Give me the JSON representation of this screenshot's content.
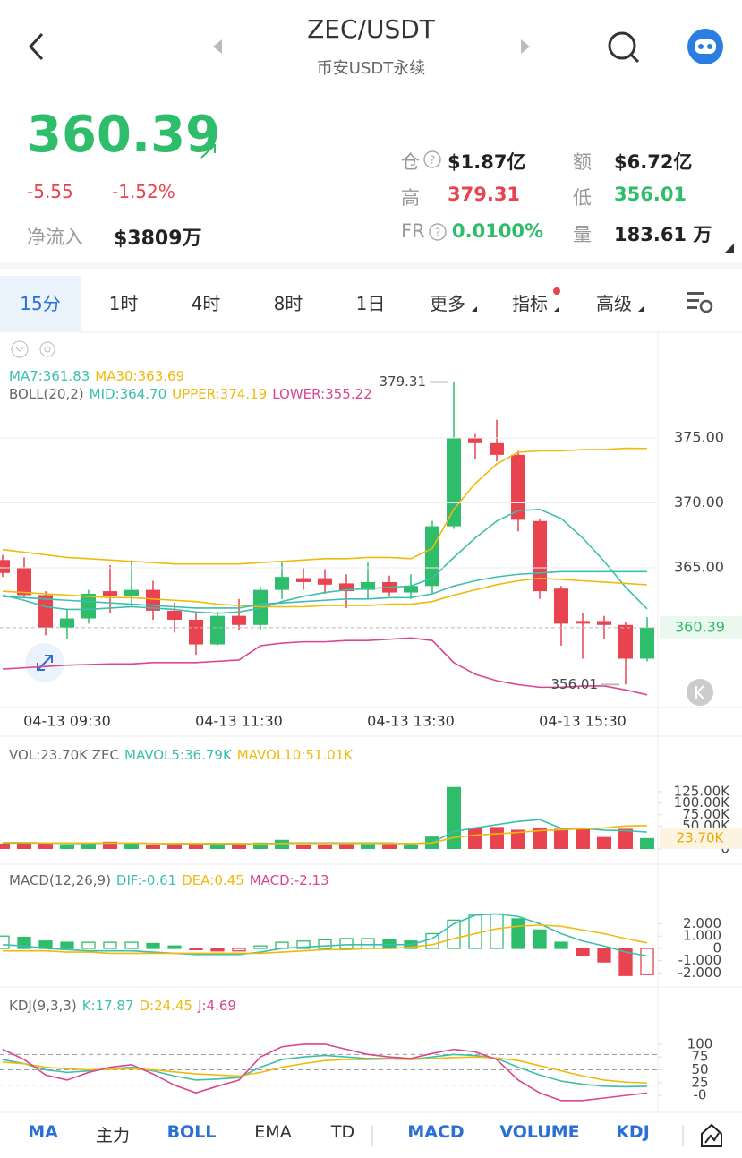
{
  "header": {
    "title": "ZEC/USDT",
    "subtitle": "币安USDT永续"
  },
  "quote": {
    "price": "360.39",
    "change": "-5.55",
    "change_pct": "-1.52%",
    "net_inflow_label": "净流入",
    "net_inflow": "$3809万",
    "stats": [
      {
        "label": "仓",
        "value": "$1.87亿",
        "color": "#222"
      },
      {
        "label": "额",
        "value": "$6.72亿",
        "color": "#222"
      },
      {
        "label": "高",
        "value": "379.31",
        "color": "#e8434f"
      },
      {
        "label": "低",
        "value": "356.01",
        "color": "#2ebd6b"
      },
      {
        "label": "FR",
        "value": "0.0100%",
        "color": "#2ebd6b"
      },
      {
        "label": "量",
        "value": "183.61 万",
        "color": "#222"
      }
    ]
  },
  "tabs": [
    {
      "label": "15分",
      "active": true
    },
    {
      "label": "1时"
    },
    {
      "label": "4时"
    },
    {
      "label": "8时"
    },
    {
      "label": "1日"
    },
    {
      "label": "更多"
    },
    {
      "label": "指标"
    },
    {
      "label": "高级"
    }
  ],
  "chart_data": [
    {
      "type": "candlestick",
      "up_color": "#2ebd6b",
      "down_color": "#e8434f",
      "categories": [
        null,
        null,
        null,
        "04-13 09:30",
        null,
        null,
        null,
        null,
        null,
        null,
        null,
        "04-13 11:30",
        null,
        null,
        null,
        null,
        null,
        null,
        null,
        "04-13 13:30",
        null,
        null,
        null,
        null,
        null,
        null,
        null,
        "04-13 15:30",
        null,
        null,
        null
      ],
      "open": [
        365.6,
        365.0,
        362.9,
        360.4,
        361.1,
        363.2,
        362.8,
        363.3,
        361.7,
        361.0,
        359.1,
        361.3,
        360.6,
        363.3,
        364.2,
        364.2,
        363.8,
        363.3,
        363.9,
        363.1,
        363.6,
        368.2,
        375.0,
        374.6,
        373.7,
        368.6,
        363.4,
        360.9,
        360.9,
        360.6,
        358.0
      ],
      "high": [
        366.0,
        365.8,
        363.2,
        361.8,
        363.3,
        365.2,
        365.6,
        364.0,
        362.3,
        361.5,
        361.6,
        362.6,
        363.5,
        365.5,
        365.0,
        364.9,
        364.5,
        365.4,
        364.4,
        364.5,
        368.6,
        379.31,
        375.3,
        376.4,
        374.0,
        368.8,
        363.6,
        361.5,
        361.3,
        360.8,
        361.2
      ],
      "low": [
        364.3,
        362.7,
        359.8,
        359.5,
        360.7,
        361.5,
        362.0,
        361.0,
        360.0,
        358.3,
        359.0,
        360.2,
        360.2,
        362.6,
        363.3,
        363.0,
        361.9,
        362.6,
        362.8,
        362.6,
        363.0,
        368.0,
        373.4,
        373.2,
        367.8,
        362.6,
        359.0,
        358.0,
        359.5,
        356.01,
        357.8
      ],
      "close": [
        364.6,
        362.9,
        360.4,
        361.1,
        363.0,
        362.8,
        363.3,
        361.7,
        361.0,
        359.1,
        361.3,
        360.6,
        363.3,
        364.3,
        363.9,
        363.7,
        363.2,
        363.9,
        363.1,
        363.6,
        368.2,
        375.0,
        374.6,
        373.7,
        368.7,
        363.2,
        360.7,
        360.7,
        360.6,
        358.0,
        360.39
      ],
      "series": [
        {
          "color": "#3cbfae",
          "values": [
            362.9,
            362.5,
            362.0,
            361.8,
            361.8,
            361.9,
            362.0,
            361.9,
            361.8,
            361.6,
            361.5,
            361.6,
            361.9,
            362.4,
            362.8,
            363.1,
            363.3,
            363.4,
            363.5,
            363.6,
            364.2,
            365.8,
            367.3,
            368.6,
            369.4,
            369.5,
            368.8,
            367.3,
            365.5,
            363.5,
            361.83
          ]
        },
        {
          "color": "#f0b90b",
          "values": [
            363.2,
            363.1,
            363.0,
            362.9,
            362.8,
            362.7,
            362.7,
            362.6,
            362.5,
            362.4,
            362.2,
            362.1,
            362.0,
            362.0,
            362.0,
            362.1,
            362.1,
            362.1,
            362.2,
            362.2,
            362.4,
            362.9,
            363.3,
            363.7,
            364.0,
            364.2,
            364.1,
            364.0,
            363.9,
            363.8,
            363.69
          ]
        },
        {
          "color": "#3cbfae",
          "values": [
            362.8,
            362.7,
            362.6,
            362.5,
            362.4,
            362.3,
            362.2,
            362.1,
            362.0,
            361.9,
            361.9,
            361.9,
            362.2,
            362.3,
            362.4,
            362.5,
            362.6,
            362.6,
            362.7,
            362.7,
            363.0,
            363.6,
            364.0,
            364.3,
            364.5,
            364.6,
            364.7,
            364.7,
            364.7,
            364.7,
            364.7
          ]
        },
        {
          "color": "#f0b90b",
          "values": [
            366.4,
            366.2,
            366.0,
            365.8,
            365.7,
            365.6,
            365.5,
            365.4,
            365.3,
            365.3,
            365.3,
            365.3,
            365.4,
            365.5,
            365.6,
            365.7,
            365.7,
            365.8,
            365.8,
            365.7,
            366.5,
            369.5,
            371.5,
            373.0,
            373.9,
            374.0,
            374.0,
            374.1,
            374.1,
            374.2,
            374.19
          ]
        },
        {
          "color": "#d9468f",
          "values": [
            357.2,
            357.3,
            357.4,
            357.5,
            357.55,
            357.6,
            357.6,
            357.7,
            357.7,
            357.7,
            357.8,
            357.9,
            359.0,
            359.2,
            359.3,
            359.3,
            359.4,
            359.4,
            359.5,
            359.6,
            359.4,
            357.7,
            356.8,
            356.3,
            356.0,
            355.8,
            355.8,
            355.9,
            355.9,
            355.6,
            355.22
          ]
        }
      ],
      "legend": [
        [
          {
            "text": "MA7:361.83",
            "color": "#3cbfae"
          },
          {
            "text": "MA30:363.69",
            "color": "#f0b90b"
          }
        ],
        [
          {
            "text": "BOLL(20,2)",
            "color": "#666"
          },
          {
            "text": "MID:364.70",
            "color": "#3cbfae"
          },
          {
            "text": "UPPER:374.19",
            "color": "#f0b90b"
          },
          {
            "text": "LOWER:355.22",
            "color": "#d9468f"
          }
        ]
      ],
      "high_label": "379.31",
      "low_label": "356.01",
      "last_label": "360.39",
      "ylim": [
        354.24,
        383.07
      ],
      "yticks": [
        {
          "value": 375,
          "label": "375.00"
        },
        {
          "value": 370,
          "label": "370.00"
        },
        {
          "value": 365,
          "label": "365.00"
        }
      ],
      "grid": true
    },
    {
      "type": "bar",
      "values": [
        12,
        14,
        13,
        10,
        12,
        16,
        12,
        10,
        8,
        12,
        10,
        10,
        14,
        20,
        10,
        10,
        12,
        12,
        11,
        8,
        27,
        135,
        45,
        48,
        42,
        45,
        44,
        46,
        26,
        44,
        23.7
      ],
      "series": [
        {
          "color": "#3cbfae",
          "values": [
            13,
            13,
            13,
            12,
            12,
            13,
            13,
            12,
            11,
            12,
            10,
            10,
            11,
            13,
            13,
            13,
            13,
            13,
            13,
            11,
            14,
            38,
            46,
            53,
            60,
            64,
            45,
            45,
            41,
            40,
            36.79
          ]
        },
        {
          "color": "#f0b90b",
          "values": [
            14,
            14,
            13,
            13,
            13,
            13,
            13,
            12,
            12,
            12,
            12,
            12,
            11,
            12,
            12,
            12,
            12,
            12,
            12,
            12,
            13,
            25,
            30,
            33,
            36,
            40,
            42,
            44,
            46,
            50,
            51.01
          ]
        }
      ],
      "legend": [
        [
          {
            "text": "VOL:23.70K ZEC",
            "color": "#666"
          },
          {
            "text": "MAVOL5:36.79K",
            "color": "#3cbfae"
          },
          {
            "text": "MAVOL10:51.01K",
            "color": "#f0b90b"
          }
        ]
      ],
      "last_label": "23.70K",
      "ylim": [
        0,
        230
      ],
      "yticks": [
        0,
        {
          "value": 50,
          "label": "50.00K"
        },
        {
          "value": 75,
          "label": "75.00K"
        },
        {
          "value": 100,
          "label": "100.00K"
        },
        {
          "value": 125,
          "label": "125.00K"
        }
      ]
    },
    {
      "type": "histogram",
      "values": [
        1.0,
        0.9,
        0.6,
        0.5,
        0.5,
        0.5,
        0.5,
        0.4,
        0.2,
        -0.1,
        -0.2,
        -0.2,
        0.2,
        0.5,
        0.6,
        0.7,
        0.8,
        0.8,
        0.7,
        0.6,
        1.2,
        2.3,
        2.7,
        2.8,
        2.4,
        1.5,
        0.5,
        -0.6,
        -1.1,
        -2.2,
        -2.13
      ],
      "series": [
        {
          "color": "#3cbfae",
          "values": [
            0.3,
            0.2,
            0.0,
            -0.1,
            -0.2,
            -0.2,
            -0.2,
            -0.3,
            -0.4,
            -0.5,
            -0.5,
            -0.5,
            -0.3,
            0.0,
            0.1,
            0.2,
            0.3,
            0.3,
            0.3,
            0.3,
            0.8,
            2.0,
            2.7,
            2.8,
            2.6,
            2.0,
            1.2,
            0.6,
            0.2,
            -0.3,
            -0.61
          ]
        },
        {
          "color": "#f0b90b",
          "values": [
            -0.2,
            -0.2,
            -0.2,
            -0.3,
            -0.3,
            -0.4,
            -0.4,
            -0.4,
            -0.4,
            -0.4,
            -0.4,
            -0.4,
            -0.4,
            -0.3,
            -0.2,
            -0.1,
            -0.1,
            0.0,
            0.0,
            0.1,
            0.3,
            0.8,
            1.2,
            1.6,
            1.8,
            1.9,
            1.8,
            1.5,
            1.2,
            0.8,
            0.45
          ]
        }
      ],
      "legend": [
        [
          {
            "text": "MACD(12,26,9)",
            "color": "#666"
          },
          {
            "text": "DIF:-0.61",
            "color": "#3cbfae"
          },
          {
            "text": "DEA:0.45",
            "color": "#f0b90b"
          },
          {
            "text": "MACD:-2.13",
            "color": "#d9468f"
          }
        ]
      ],
      "ylim": [
        -2.84,
        6.33
      ],
      "yticks": [
        {
          "value": 2,
          "label": "2.000"
        },
        {
          "value": 1,
          "label": "1.000"
        },
        0,
        {
          "value": -1,
          "label": "-1.000"
        },
        {
          "value": -2,
          "label": "-2.000"
        }
      ]
    },
    {
      "type": "line",
      "series": [
        {
          "color": "#3cbfae",
          "values": [
            70,
            62,
            50,
            45,
            48,
            52,
            55,
            48,
            38,
            30,
            32,
            35,
            55,
            70,
            75,
            78,
            75,
            72,
            72,
            70,
            75,
            80,
            78,
            72,
            55,
            40,
            28,
            22,
            18,
            17,
            17.87
          ]
        },
        {
          "color": "#f0b90b",
          "values": [
            65,
            62,
            55,
            52,
            50,
            51,
            52,
            50,
            46,
            42,
            40,
            38,
            45,
            55,
            62,
            68,
            70,
            70,
            71,
            70,
            72,
            74,
            75,
            73,
            68,
            58,
            48,
            38,
            30,
            26,
            24.45
          ]
        },
        {
          "color": "#d9468f",
          "values": [
            90,
            70,
            40,
            30,
            45,
            55,
            60,
            42,
            20,
            5,
            18,
            30,
            75,
            95,
            100,
            100,
            90,
            80,
            75,
            72,
            82,
            90,
            85,
            70,
            30,
            5,
            -10,
            -10,
            -5,
            0,
            4.69
          ]
        }
      ],
      "legend": [
        [
          {
            "text": "KDJ(9,3,3)",
            "color": "#666"
          },
          {
            "text": "K:17.87",
            "color": "#3cbfae"
          },
          {
            "text": "D:24.45",
            "color": "#f0b90b"
          },
          {
            "text": "J:4.69",
            "color": "#d9468f"
          }
        ]
      ],
      "ref_lines": [
        80,
        50,
        20
      ],
      "ylim": [
        -26,
        154
      ],
      "yticks": [
        100,
        75,
        50,
        25,
        {
          "value": 0,
          "label": "-0"
        }
      ]
    }
  ],
  "indicator_bar": [
    {
      "label": "MA",
      "active": true
    },
    {
      "label": "主力"
    },
    {
      "label": "BOLL",
      "active": true
    },
    {
      "label": "EMA"
    },
    {
      "label": "TD"
    },
    {
      "label": "MACD",
      "active": true
    },
    {
      "label": "VOLUME",
      "active": true
    },
    {
      "label": "KDJ",
      "active": true
    }
  ]
}
